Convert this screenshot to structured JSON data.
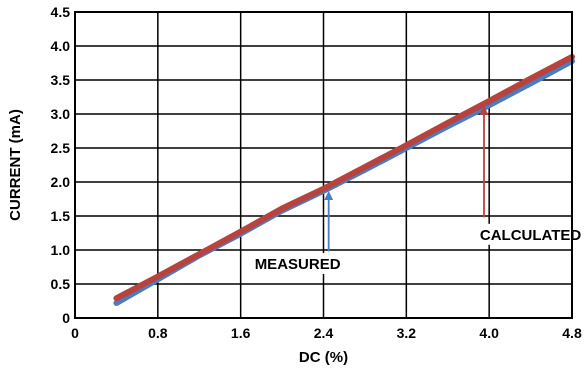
{
  "chart_data": {
    "type": "line",
    "xlabel": "DC (%)",
    "ylabel": "CURRENT (mA)",
    "xlim": [
      0,
      4.8
    ],
    "ylim": [
      0,
      4.5
    ],
    "xticks": [
      "0",
      "0.8",
      "1.6",
      "2.4",
      "3.2",
      "4.0",
      "4.8"
    ],
    "yticks": [
      "0",
      "0.5",
      "1.0",
      "1.5",
      "2.0",
      "2.5",
      "3.0",
      "3.5",
      "4.0",
      "4.5"
    ],
    "grid": true,
    "series": [
      {
        "name": "MEASURED",
        "color": "#4a7cc0",
        "x": [
          0.4,
          0.8,
          1.2,
          1.6,
          2.0,
          2.4,
          2.8,
          3.2,
          3.6,
          4.0,
          4.4,
          4.8
        ],
        "y": [
          0.22,
          0.57,
          0.92,
          1.24,
          1.58,
          1.87,
          2.18,
          2.5,
          2.82,
          3.13,
          3.45,
          3.78
        ]
      },
      {
        "name": "CALCULATED",
        "color": "#b8433e",
        "x": [
          0.4,
          0.8,
          1.2,
          1.6,
          2.0,
          2.4,
          2.8,
          3.2,
          3.6,
          4.0,
          4.4,
          4.8
        ],
        "y": [
          0.29,
          0.61,
          0.94,
          1.27,
          1.61,
          1.9,
          2.22,
          2.54,
          2.87,
          3.19,
          3.52,
          3.84
        ]
      }
    ],
    "annotations": [
      {
        "text": "MEASURED",
        "series": "MEASURED",
        "x": 2.45,
        "y": 1.9,
        "color": "#4a7cc0"
      },
      {
        "text": "CALCULATED",
        "series": "CALCULATED",
        "x": 3.95,
        "y": 3.15,
        "color": "#b8433e"
      }
    ]
  }
}
